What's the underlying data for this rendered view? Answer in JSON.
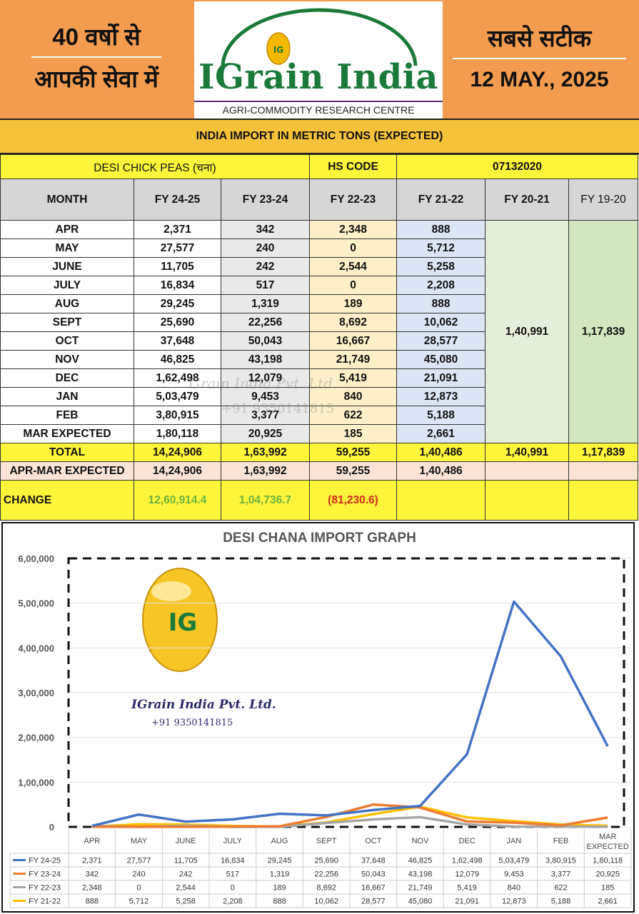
{
  "header": {
    "left_line1": "40 वर्षो से",
    "left_line2": "आपकी सेवा में",
    "logo_badge": "IG",
    "brand": "IGrain India",
    "tagline": "AGRI-COMMODITY RESEARCH CENTRE",
    "right_line1": "सबसे सटीक",
    "date": "12 MAY., 2025",
    "colors": {
      "header_bg": "#f39b4e",
      "brand_green": "#1b7a3a"
    }
  },
  "table": {
    "title": "INDIA IMPORT IN METRIC TONS (EXPECTED)",
    "product_label": "DESI CHICK PEAS (चना)",
    "hs_code_label": "HS CODE",
    "hs_code": "07132020",
    "columns": [
      "MONTH",
      "FY 24-25",
      "FY 23-24",
      "FY 22-23",
      "FY 21-22",
      "FY 20-21",
      "FY 19-20"
    ],
    "rows": [
      [
        "APR",
        "2,371",
        "342",
        "2,348",
        "888"
      ],
      [
        "MAY",
        "27,577",
        "240",
        "0",
        "5,712"
      ],
      [
        "JUNE",
        "11,705",
        "242",
        "2,544",
        "5,258"
      ],
      [
        "JULY",
        "16,834",
        "517",
        "0",
        "2,208"
      ],
      [
        "AUG",
        "29,245",
        "1,319",
        "189",
        "888"
      ],
      [
        "SEPT",
        "25,690",
        "22,256",
        "8,692",
        "10,062"
      ],
      [
        "OCT",
        "37,648",
        "50,043",
        "16,667",
        "28,577"
      ],
      [
        "NOV",
        "46,825",
        "43,198",
        "21,749",
        "45,080"
      ],
      [
        "DEC",
        "1,62,498",
        "12,079",
        "5,419",
        "21,091"
      ],
      [
        "JAN",
        "5,03,479",
        "9,453",
        "840",
        "12,873"
      ],
      [
        "FEB",
        "3,80,915",
        "3,377",
        "622",
        "5,188"
      ],
      [
        "MAR  EXPECTED",
        "1,80,118",
        "20,925",
        "185",
        "2,661"
      ]
    ],
    "fy2021_total_merged": "1,40,991",
    "fy1920_total_merged": "1,17,839",
    "total": [
      "TOTAL",
      "14,24,906",
      "1,63,992",
      "59,255",
      "1,40,486",
      "1,40,991",
      "1,17,839"
    ],
    "apr_mar_expected": [
      "APR-MAR EXPECTED",
      "14,24,906",
      "1,63,992",
      "59,255",
      "1,40,486"
    ],
    "change": [
      "CHANGE",
      "12,60,914.4",
      "1,04,736.7",
      "(81,230.6)"
    ],
    "watermark": {
      "text1": "Grain India Pvt. Ltd.",
      "text2": "+91 9350141815"
    }
  },
  "chart_data": {
    "type": "line",
    "title": "DESI CHANA IMPORT GRAPH",
    "categories": [
      "APR",
      "MAY",
      "JUNE",
      "JULY",
      "AUG",
      "SEPT",
      "OCT",
      "NOV",
      "DEC",
      "JAN",
      "FEB",
      "MAR EXPECTED"
    ],
    "category_labels": [
      "APR",
      "MAY",
      "JUNE",
      "JULY",
      "AUG",
      "SEPT",
      "OCT",
      "NOV",
      "DEC",
      "JAN",
      "FEB",
      "MAR|EXPECTED"
    ],
    "y_ticks": [
      0,
      100000,
      200000,
      300000,
      400000,
      500000,
      600000
    ],
    "y_tick_labels": [
      "0",
      "1,00,000",
      "2,00,000",
      "3,00,000",
      "4,00,000",
      "5,00,000",
      "6,00,000"
    ],
    "ylim": [
      0,
      600000
    ],
    "gridlines": true,
    "legend_position": "bottom-table",
    "series": [
      {
        "name": "FY 24-25",
        "color": "#4472c4",
        "values": [
          2371,
          27577,
          11705,
          16834,
          29245,
          25690,
          37648,
          46825,
          162498,
          503479,
          380915,
          180118
        ],
        "labels": [
          "2,371",
          "27,577",
          "11,705",
          "16,834",
          "29,245",
          "25,690",
          "37,648",
          "46,825",
          "1,62,498",
          "5,03,479",
          "3,80,915",
          "1,80,118"
        ]
      },
      {
        "name": "FY 23-24",
        "color": "#ed7d31",
        "values": [
          342,
          240,
          242,
          517,
          1319,
          22256,
          50043,
          43198,
          12079,
          9453,
          3377,
          20925
        ],
        "labels": [
          "342",
          "240",
          "242",
          "517",
          "1,319",
          "22,256",
          "50,043",
          "43,198",
          "12,079",
          "9,453",
          "3,377",
          "20,925"
        ]
      },
      {
        "name": "FY 22-23",
        "color": "#a5a5a5",
        "values": [
          2348,
          0,
          2544,
          0,
          189,
          8692,
          16667,
          21749,
          5419,
          840,
          622,
          185
        ],
        "labels": [
          "2,348",
          "0",
          "2,544",
          "0",
          "189",
          "8,692",
          "16,667",
          "21,749",
          "5,419",
          "840",
          "622",
          "185"
        ]
      },
      {
        "name": "FY 21-22",
        "color": "#ffc000",
        "values": [
          888,
          5712,
          5258,
          2208,
          888,
          10062,
          28577,
          45080,
          21091,
          12873,
          5188,
          2661
        ],
        "labels": [
          "888",
          "5,712",
          "5,258",
          "2,208",
          "888",
          "10,062",
          "28,577",
          "45,080",
          "21,091",
          "12,873",
          "5,188",
          "2,661"
        ]
      }
    ],
    "watermark": {
      "badge": "IG",
      "company": "IGrain India Pvt. Ltd.",
      "phone": "+91 9350141815"
    }
  }
}
